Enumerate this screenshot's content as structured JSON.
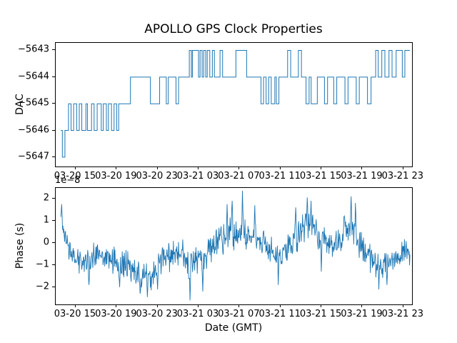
{
  "title": "APOLLO GPS Clock Properties",
  "xlabel": "Date (GMT)",
  "colors": {
    "line": "#1f77b4",
    "text": "#000000",
    "background": "#ffffff"
  },
  "x_axis": {
    "xlim": [
      -1.95,
      32.85
    ],
    "tick_hours": [
      0,
      4,
      8,
      12,
      16,
      20,
      24,
      28,
      32
    ],
    "tick_labels": [
      "03-20 15",
      "03-20 19",
      "03-20 23",
      "03-21 03",
      "03-21 07",
      "03-21 11",
      "03-21 15",
      "03-21 19",
      "03-21 23"
    ]
  },
  "chart_data": [
    {
      "type": "line",
      "name": "dac",
      "title": "DAC vs GPS time",
      "ylabel": "DAC",
      "draw_style": "steps-post",
      "ylim": [
        -5647.35,
        -5642.72
      ],
      "yticks": [
        -5647,
        -5646,
        -5645,
        -5644,
        -5643
      ],
      "ytick_labels": [
        "−5647",
        "−5646",
        "−5645",
        "−5644",
        "−5643"
      ],
      "x_unit": "hours relative to 03-20 15:00 GMT",
      "points": [
        [
          -1.45,
          -5646
        ],
        [
          -1.3,
          -5647
        ],
        [
          -1.05,
          -5646
        ],
        [
          -0.7,
          -5645
        ],
        [
          -0.45,
          -5646
        ],
        [
          -0.2,
          -5645
        ],
        [
          0.1,
          -5646
        ],
        [
          0.35,
          -5645
        ],
        [
          0.6,
          -5646
        ],
        [
          1.0,
          -5645
        ],
        [
          1.15,
          -5646
        ],
        [
          1.55,
          -5645
        ],
        [
          1.8,
          -5646
        ],
        [
          2.1,
          -5645
        ],
        [
          2.5,
          -5646
        ],
        [
          2.7,
          -5645
        ],
        [
          3.0,
          -5646
        ],
        [
          3.2,
          -5645
        ],
        [
          3.5,
          -5646
        ],
        [
          3.75,
          -5645
        ],
        [
          4.0,
          -5646
        ],
        [
          4.2,
          -5645
        ],
        [
          5.35,
          -5644
        ],
        [
          7.3,
          -5645
        ],
        [
          8.2,
          -5644
        ],
        [
          8.85,
          -5645
        ],
        [
          9.05,
          -5644
        ],
        [
          9.8,
          -5645
        ],
        [
          10.05,
          -5644
        ],
        [
          11.1,
          -5643
        ],
        [
          11.3,
          -5644
        ],
        [
          11.4,
          -5643
        ],
        [
          12.0,
          -5644
        ],
        [
          12.15,
          -5643
        ],
        [
          12.35,
          -5644
        ],
        [
          12.5,
          -5643
        ],
        [
          12.7,
          -5644
        ],
        [
          12.85,
          -5643
        ],
        [
          13.1,
          -5644
        ],
        [
          13.35,
          -5643
        ],
        [
          13.55,
          -5644
        ],
        [
          14.1,
          -5643
        ],
        [
          14.35,
          -5644
        ],
        [
          15.65,
          -5643
        ],
        [
          16.7,
          -5644
        ],
        [
          18.1,
          -5645
        ],
        [
          18.35,
          -5644
        ],
        [
          18.6,
          -5645
        ],
        [
          18.85,
          -5644
        ],
        [
          19.1,
          -5645
        ],
        [
          19.45,
          -5644
        ],
        [
          19.6,
          -5645
        ],
        [
          19.85,
          -5644
        ],
        [
          20.7,
          -5643
        ],
        [
          21.0,
          -5644
        ],
        [
          21.75,
          -5643
        ],
        [
          22.05,
          -5644
        ],
        [
          22.5,
          -5645
        ],
        [
          22.8,
          -5644
        ],
        [
          23.0,
          -5645
        ],
        [
          23.6,
          -5644
        ],
        [
          24.3,
          -5645
        ],
        [
          24.6,
          -5644
        ],
        [
          25.2,
          -5645
        ],
        [
          25.5,
          -5644
        ],
        [
          26.3,
          -5645
        ],
        [
          26.6,
          -5644
        ],
        [
          27.4,
          -5645
        ],
        [
          27.7,
          -5644
        ],
        [
          28.5,
          -5645
        ],
        [
          28.85,
          -5644
        ],
        [
          29.3,
          -5643
        ],
        [
          29.55,
          -5644
        ],
        [
          29.9,
          -5643
        ],
        [
          30.2,
          -5644
        ],
        [
          30.6,
          -5643
        ],
        [
          30.9,
          -5644
        ],
        [
          31.3,
          -5643
        ],
        [
          31.9,
          -5644
        ],
        [
          32.15,
          -5643
        ],
        [
          32.65,
          -5643
        ]
      ]
    },
    {
      "type": "line",
      "name": "phase",
      "title": "Phase vs GPS time",
      "ylabel": "Phase (s)",
      "offset_label": "1e−8",
      "ylim": [
        -2.78,
        2.48
      ],
      "yticks": [
        -2,
        -1,
        0,
        1,
        2
      ],
      "ytick_labels": [
        "−2",
        "−1",
        "0",
        "1",
        "2"
      ],
      "x_unit": "hours relative to 03-20 15:00 GMT",
      "value_unit": "1e-8 s",
      "samples": 820,
      "seed": 987654321,
      "envelope": [
        [
          -1.45,
          1.2,
          0.3
        ],
        [
          -1.1,
          0.3,
          0.4
        ],
        [
          -0.5,
          -0.6,
          0.45
        ],
        [
          0.5,
          -0.8,
          0.5
        ],
        [
          2.0,
          -0.55,
          0.5
        ],
        [
          3.5,
          -0.75,
          0.45
        ],
        [
          5.0,
          -1.0,
          0.5
        ],
        [
          6.5,
          -1.55,
          0.5
        ],
        [
          7.5,
          -1.45,
          0.5
        ],
        [
          8.5,
          -0.9,
          0.5
        ],
        [
          10.0,
          -0.4,
          0.55
        ],
        [
          11.2,
          -0.9,
          0.6
        ],
        [
          12.0,
          -0.8,
          0.55
        ],
        [
          13.0,
          -0.3,
          0.55
        ],
        [
          14.0,
          0.2,
          0.55
        ],
        [
          15.2,
          0.45,
          0.6
        ],
        [
          16.2,
          0.45,
          0.65
        ],
        [
          17.0,
          0.35,
          0.55
        ],
        [
          18.0,
          0.1,
          0.5
        ],
        [
          19.0,
          -0.35,
          0.5
        ],
        [
          20.0,
          -0.55,
          0.5
        ],
        [
          21.0,
          -0.1,
          0.55
        ],
        [
          22.2,
          0.7,
          0.6
        ],
        [
          23.2,
          0.75,
          0.55
        ],
        [
          24.2,
          0.2,
          0.5
        ],
        [
          25.2,
          -0.15,
          0.5
        ],
        [
          26.2,
          0.4,
          0.6
        ],
        [
          27.0,
          0.65,
          0.6
        ],
        [
          28.0,
          -0.2,
          0.5
        ],
        [
          29.0,
          -0.85,
          0.5
        ],
        [
          30.0,
          -1.0,
          0.45
        ],
        [
          31.0,
          -0.75,
          0.5
        ],
        [
          32.0,
          -0.5,
          0.5
        ],
        [
          32.65,
          -0.55,
          0.45
        ]
      ],
      "spikes": [
        [
          -1.35,
          1.75
        ],
        [
          1.3,
          -1.9
        ],
        [
          4.3,
          -2.0
        ],
        [
          6.3,
          -2.3
        ],
        [
          7.0,
          -2.45
        ],
        [
          8.0,
          -2.1
        ],
        [
          11.15,
          -2.6
        ],
        [
          12.4,
          -2.2
        ],
        [
          14.8,
          1.75
        ],
        [
          15.3,
          1.9
        ],
        [
          16.3,
          2.35
        ],
        [
          17.5,
          1.7
        ],
        [
          19.8,
          -1.9
        ],
        [
          21.5,
          1.6
        ],
        [
          22.6,
          2.05
        ],
        [
          23.0,
          1.9
        ],
        [
          24.0,
          -1.3
        ],
        [
          26.9,
          2.1
        ],
        [
          27.3,
          1.8
        ],
        [
          29.6,
          -2.1
        ],
        [
          30.4,
          -1.9
        ]
      ]
    }
  ]
}
